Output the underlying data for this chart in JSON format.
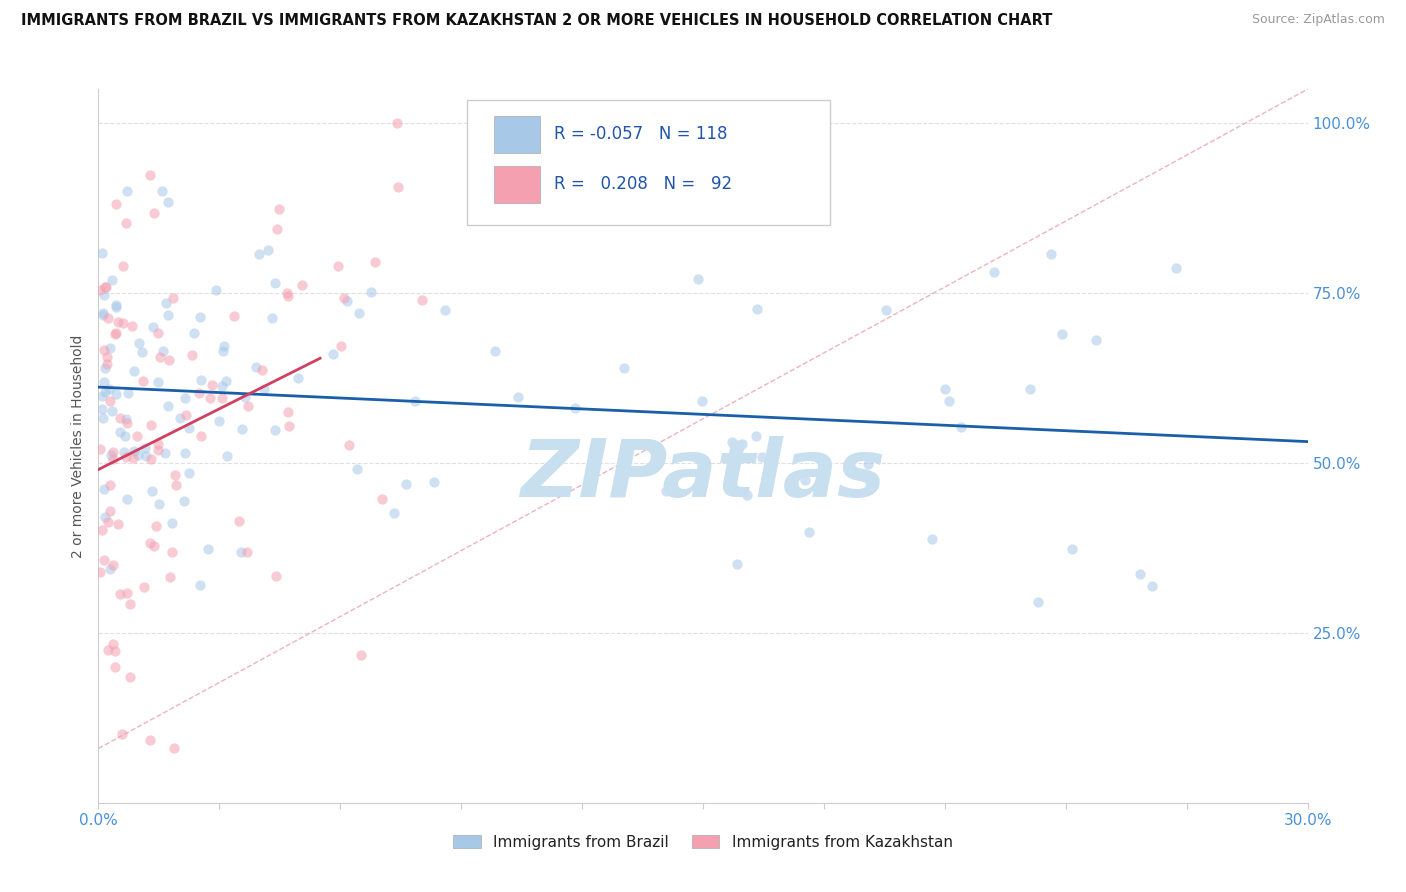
{
  "title": "IMMIGRANTS FROM BRAZIL VS IMMIGRANTS FROM KAZAKHSTAN 2 OR MORE VEHICLES IN HOUSEHOLD CORRELATION CHART",
  "source": "Source: ZipAtlas.com",
  "ylabel_label": "2 or more Vehicles in Household",
  "legend_label1": "Immigrants from Brazil",
  "legend_label2": "Immigrants from Kazakhstan",
  "R1": "-0.057",
  "N1": "118",
  "R2": "0.208",
  "N2": "92",
  "xmin": 0.0,
  "xmax": 30.0,
  "ymin": 0.0,
  "ymax": 105.0,
  "yticks": [
    25.0,
    50.0,
    75.0,
    100.0
  ],
  "ytick_labels": [
    "25.0%",
    "50.0%",
    "75.0%",
    "100.0%"
  ],
  "color_brazil": "#a8c8e8",
  "color_kazakhstan": "#f4a0b0",
  "color_brazil_fill": "#a8c8e8",
  "color_kazakhstan_fill": "#f4a0b0",
  "color_brazil_line": "#1a5fa8",
  "color_kazakhstan_line": "#d04060",
  "color_diag_line": "#e8a0a8",
  "watermark_text": "ZIPatlas",
  "watermark_color": "#c8dff0",
  "grid_color": "#e0e0e0",
  "grid_style": "--"
}
